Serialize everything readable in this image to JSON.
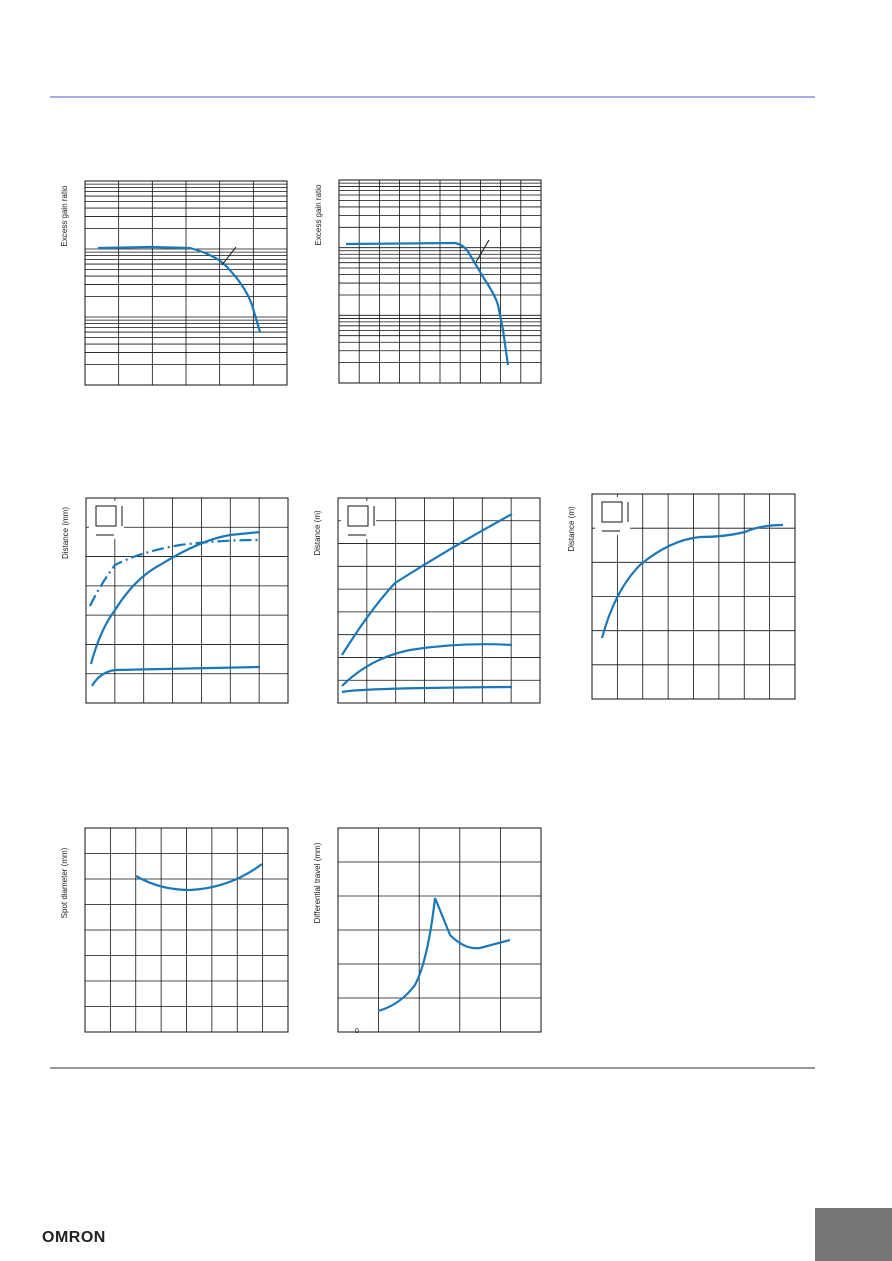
{
  "charts": [
    {
      "y_label": "Excess gain ratio"
    },
    {
      "y_label": "Excess gain ratio"
    },
    {
      "y_label": "Distance (mm)"
    },
    {
      "y_label": "Distance (m)"
    },
    {
      "y_label": "Distance (m)"
    },
    {
      "y_label": "Spot diameter (mm)"
    },
    {
      "y_label": "Differential travel (mm)",
      "origin_label": "0"
    }
  ],
  "footer": {
    "logo": "OMRON"
  }
}
